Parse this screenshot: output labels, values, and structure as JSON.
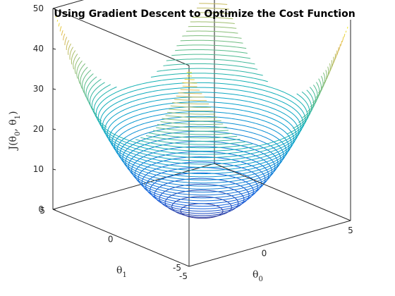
{
  "chart_data": {
    "type": "contour3",
    "title": "Using Gradient Descent to Optimize the Cost Function",
    "xlabel": "θ0",
    "ylabel": "θ1",
    "zlabel": "J(θ0, θ1)",
    "xlim": [
      -5,
      5
    ],
    "ylim": [
      -5,
      5
    ],
    "zlim": [
      0,
      50
    ],
    "xticks": [
      -5,
      0,
      5
    ],
    "yticks": [
      -5,
      0,
      5
    ],
    "zticks": [
      0,
      10,
      20,
      30,
      40,
      50
    ],
    "function": "J = θ0^2 + θ1^2",
    "contour_levels": {
      "start": 1,
      "end": 49,
      "step": 1
    },
    "colormap": "parula",
    "grid": false
  },
  "labels": {
    "title": "Using Gradient Descent to Optimize the Cost Function",
    "x_main": "θ",
    "x_sub": "0",
    "y_main": "θ",
    "y_sub": "1",
    "z_prefix": "J(θ",
    "z_sub0": "0",
    "z_mid": ", θ",
    "z_sub1": "1",
    "z_suffix": ")"
  }
}
